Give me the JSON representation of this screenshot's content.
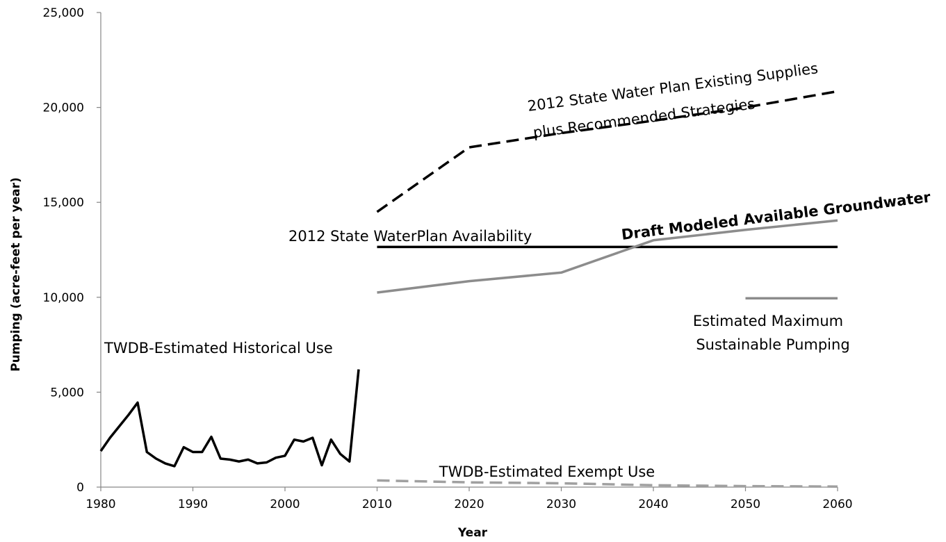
{
  "chart_data": {
    "type": "line",
    "title": "",
    "xlabel": "Year",
    "ylabel": "Pumping (acre-feet per year)",
    "xlim": [
      1980,
      2060
    ],
    "ylim": [
      0,
      25000
    ],
    "x_ticks": [
      1980,
      1990,
      2000,
      2010,
      2020,
      2030,
      2040,
      2050,
      2060
    ],
    "x_tick_labels": [
      "1980",
      "1990",
      "2000",
      "2010",
      "2020",
      "2030",
      "2040",
      "2050",
      "2060"
    ],
    "y_ticks": [
      0,
      5000,
      10000,
      15000,
      20000,
      25000
    ],
    "y_tick_labels": [
      "0",
      "5,000",
      "10,000",
      "15,000",
      "20,000",
      "25,000"
    ],
    "grid": false,
    "legend": "none",
    "series": [
      {
        "name": "TWDB-Estimated Historical Use",
        "color": "#000000",
        "dash": "solid",
        "x": [
          1980,
          1981,
          1982,
          1983,
          1984,
          1985,
          1986,
          1987,
          1988,
          1989,
          1990,
          1991,
          1992,
          1993,
          1994,
          1995,
          1996,
          1997,
          1998,
          1999,
          2000,
          2001,
          2002,
          2003,
          2004,
          2005,
          2006,
          2007,
          2008
        ],
        "y": [
          1900,
          2600,
          3200,
          3800,
          4450,
          1850,
          1500,
          1250,
          1100,
          2100,
          1850,
          1850,
          2650,
          1500,
          1450,
          1350,
          1450,
          1250,
          1300,
          1550,
          1650,
          2500,
          2400,
          2600,
          1150,
          2500,
          1750,
          1350,
          6200
        ]
      },
      {
        "name": "2012 State Water Plan Existing Supplies plus Recommended Strategies",
        "color": "#000000",
        "dash": "dashed",
        "x": [
          2010,
          2020,
          2030,
          2040,
          2050,
          2060
        ],
        "y": [
          14500,
          17900,
          18650,
          19300,
          20000,
          20850
        ]
      },
      {
        "name": "2012 State WaterPlan Availability",
        "color": "#000000",
        "dash": "solid",
        "x": [
          2010,
          2060
        ],
        "y": [
          12650,
          12650
        ]
      },
      {
        "name": "Draft Modeled Available Groundwater",
        "color": "#8c8c8c",
        "dash": "solid",
        "x": [
          2010,
          2020,
          2030,
          2040,
          2050,
          2060
        ],
        "y": [
          10250,
          10850,
          11300,
          13000,
          13550,
          14050
        ]
      },
      {
        "name": "Estimated Maximum Sustainable Pumping",
        "color": "#8c8c8c",
        "dash": "solid",
        "x": [
          2050,
          2060
        ],
        "y": [
          9950,
          9950
        ]
      },
      {
        "name": "TWDB-Estimated Exempt Use",
        "color": "#a0a0a0",
        "dash": "dashed",
        "x": [
          2010,
          2020,
          2030,
          2040,
          2050,
          2060
        ],
        "y": [
          350,
          250,
          200,
          100,
          50,
          30
        ]
      }
    ],
    "annotations": [
      {
        "text": "TWDB-Estimated Historical Use",
        "style": "normal"
      },
      {
        "text": "2012 State Water Plan Existing Supplies",
        "style": "normal"
      },
      {
        "text": "plus Recommended Strategies",
        "style": "normal"
      },
      {
        "text": "2012 State WaterPlan Availability",
        "style": "normal"
      },
      {
        "text": "Draft Modeled Available Groundwater",
        "style": "bold"
      },
      {
        "text": "Estimated Maximum",
        "style": "normal"
      },
      {
        "text": "Sustainable Pumping",
        "style": "normal"
      },
      {
        "text": "TWDB-Estimated Exempt Use",
        "style": "normal"
      }
    ]
  }
}
